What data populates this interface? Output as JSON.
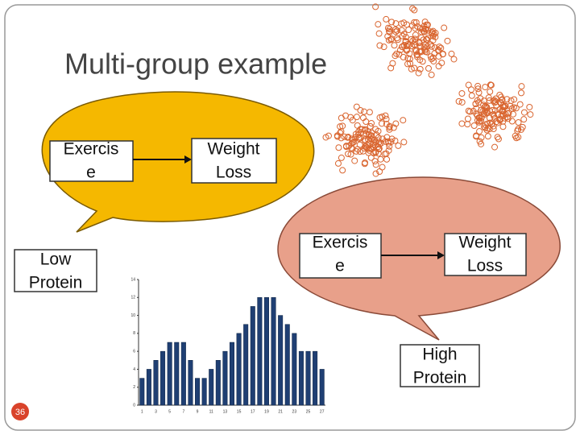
{
  "title": "Multi-group example",
  "group_low": {
    "cause": [
      "Exercis",
      "e"
    ],
    "effect": [
      "Weight",
      "Loss"
    ],
    "label": [
      "Low",
      "Protein"
    ]
  },
  "group_high": {
    "cause": [
      "Exercis",
      "e"
    ],
    "effect": [
      "Weight",
      "Loss"
    ],
    "label": [
      "High",
      "Protein"
    ]
  },
  "slide_number": "36",
  "chart_data": {
    "type": "bar",
    "categories": [
      "1",
      null,
      "3",
      null,
      "5",
      null,
      "7",
      null,
      "9",
      null,
      "11",
      null,
      "13",
      null,
      "15",
      null,
      "17",
      null,
      "19",
      null,
      "21",
      null,
      "23",
      null,
      "25",
      null,
      "27"
    ],
    "values": [
      3,
      4,
      5,
      6,
      7,
      7,
      7,
      5,
      3,
      3,
      4,
      5,
      6,
      7,
      8,
      9,
      11,
      12,
      12,
      12,
      10,
      9,
      8,
      6,
      6,
      6,
      4
    ],
    "color": "#1f3f73",
    "ylim": [
      0,
      14
    ],
    "yticks": [
      0,
      2,
      4,
      6,
      8,
      10,
      12,
      14
    ]
  }
}
